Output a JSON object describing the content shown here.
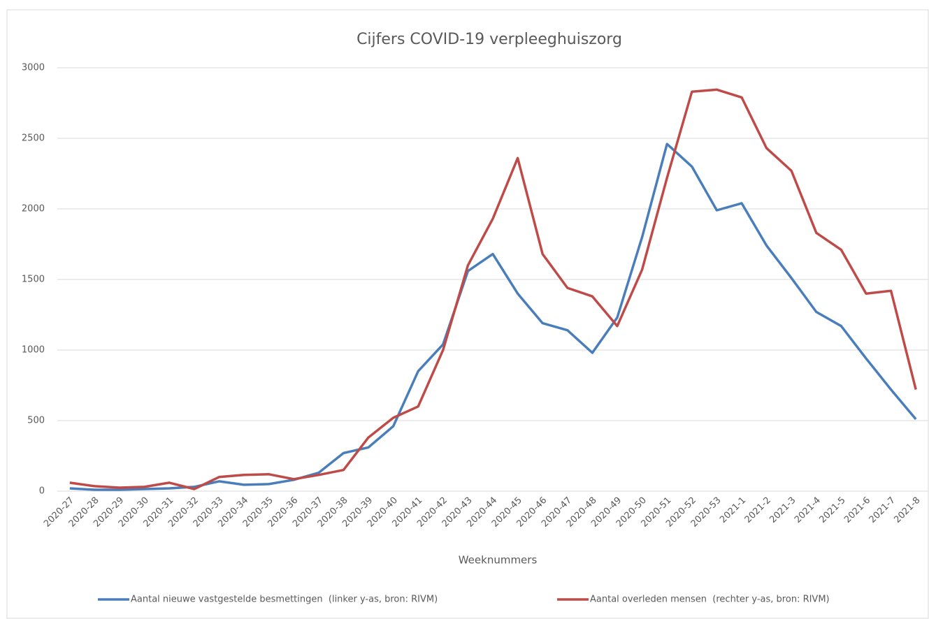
{
  "chart_data": {
    "type": "line",
    "title": "Cijfers COVID-19 verpleeghuiszorg",
    "x_label": "Weeknummers",
    "categories": [
      "2020-27",
      "2020-28",
      "2020-29",
      "2020-30",
      "2020-31",
      "2020-32",
      "2020-33",
      "2020-34",
      "2020-35",
      "2020-36",
      "2020-37",
      "2020-38",
      "2020-39",
      "2020-40",
      "2020-41",
      "2020-42",
      "2020-43",
      "2020-44",
      "2020-45",
      "2020-46",
      "2020-47",
      "2020-48",
      "2020-49",
      "2020-50",
      "2020-51",
      "2020-52",
      "2020-53",
      "2021-1",
      "2021-2",
      "2021-3",
      "2021-4",
      "2021-5",
      "2021-6",
      "2021-7",
      "2021-8"
    ],
    "series": [
      {
        "name": "Aantal nieuwe vastgestelde besmettingen  (linker y-as, bron: RIVM)",
        "color": "#4a7ebb",
        "values": [
          20,
          10,
          10,
          15,
          20,
          30,
          70,
          45,
          50,
          80,
          130,
          270,
          310,
          460,
          850,
          1040,
          1560,
          1680,
          1400,
          1190,
          1140,
          980,
          1230,
          1800,
          2460,
          2300,
          1990,
          2040,
          1740,
          1510,
          1270,
          1170,
          940,
          720,
          510
        ]
      },
      {
        "name": "Aantal overleden mensen  (rechter y-as, bron: RIVM)",
        "color": "#be4b48",
        "values": [
          60,
          35,
          25,
          30,
          60,
          15,
          100,
          115,
          120,
          85,
          115,
          150,
          380,
          520,
          600,
          1000,
          1600,
          1930,
          2360,
          1680,
          1440,
          1380,
          1170,
          1570,
          2220,
          2830,
          2845,
          2790,
          2430,
          2270,
          1830,
          1710,
          1400,
          1420,
          720
        ]
      }
    ],
    "ylim": [
      0,
      3000
    ],
    "yticks": [
      0,
      500,
      1000,
      1500,
      2000,
      2500,
      3000
    ],
    "grid": true
  }
}
